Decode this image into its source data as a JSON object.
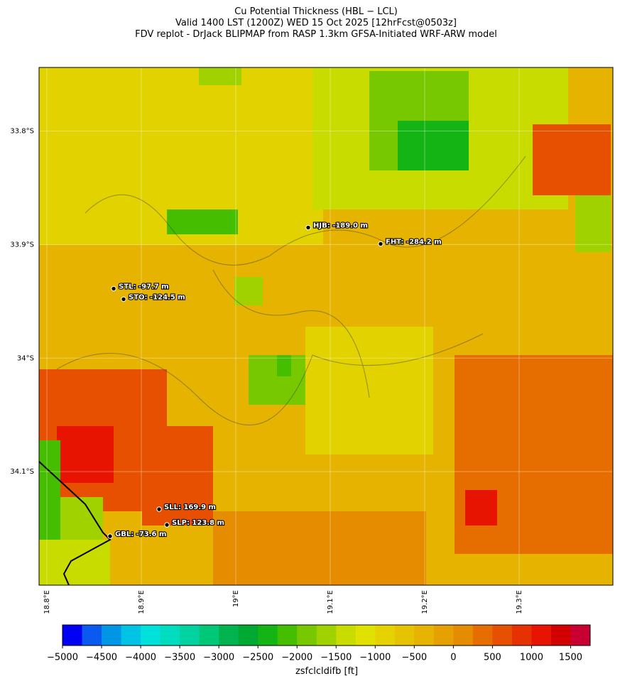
{
  "header": {
    "title_lines": [
      "Cu Potential Thickness (HBL − LCL)",
      "Valid 1400 LST (1200Z) WED 15 Oct 2025 [12hrFcst@0503z]",
      "FDV replot - DrJack BLIPMAP from RASP 1.3km GFSA-Initiated WRF-ARW model"
    ]
  },
  "map": {
    "lonlim": [
      18.7917,
      19.3993
    ],
    "latlim": [
      -34.2,
      -33.744
    ],
    "lon_ticks": [
      {
        "value": 18.8,
        "label": "18.8°E"
      },
      {
        "value": 18.9,
        "label": "18.9°E"
      },
      {
        "value": 19.0,
        "label": "19°E"
      },
      {
        "value": 19.1,
        "label": "19.1°E"
      },
      {
        "value": 19.2,
        "label": "19.2°E"
      },
      {
        "value": 19.3,
        "label": "19.3°E"
      }
    ],
    "lat_ticks": [
      {
        "value": -33.8,
        "label": "33.8°S"
      },
      {
        "value": -33.9,
        "label": "33.9°S"
      },
      {
        "value": -34.0,
        "label": "34°S"
      },
      {
        "value": -34.1,
        "label": "34.1°S"
      }
    ],
    "stations": [
      {
        "value": -189.0,
        "label": "HJB: -189.0 m",
        "lon": 19.0767,
        "lat": -33.885
      },
      {
        "value": -284.2,
        "label": "FHT: -284.2 m",
        "lon": 19.1534,
        "lat": -33.8994
      },
      {
        "value": -97.7,
        "label": "STL: -97.7 m",
        "lon": 18.8707,
        "lat": -33.9388
      },
      {
        "value": -124.5,
        "label": "STO: -124.5 m",
        "lon": 18.8812,
        "lat": -33.9481
      },
      {
        "value": 169.9,
        "label": "SLL: 169.9 m",
        "lon": 18.9188,
        "lat": -34.1331
      },
      {
        "value": 123.8,
        "label": "SLP: 123.8 m",
        "lon": 18.9271,
        "lat": -34.1469
      },
      {
        "value": -73.6,
        "label": "GBL: -73.6 m",
        "lon": 18.8669,
        "lat": -34.1569
      }
    ]
  },
  "colorbar": {
    "label": "zsfclcldifb [ft]",
    "lim": [
      -5000,
      1750
    ],
    "colors": [
      "#0000f5",
      "#0a5af0",
      "#0096e6",
      "#00c3e6",
      "#00e1dc",
      "#00dcbe",
      "#00d2a0",
      "#00c878",
      "#00b450",
      "#00aa32",
      "#14b414",
      "#46be00",
      "#78c800",
      "#a0d200",
      "#c8dc00",
      "#e1e100",
      "#e6d200",
      "#e6c300",
      "#e6b400",
      "#e6a000",
      "#e68c00",
      "#e66e00",
      "#e65000",
      "#e63200",
      "#e61400",
      "#d20000",
      "#c80032"
    ],
    "ticks": [
      {
        "value": -5000,
        "label": "−5000"
      },
      {
        "value": -4500,
        "label": "−4500"
      },
      {
        "value": -4000,
        "label": "−4000"
      },
      {
        "value": -3500,
        "label": "−3500"
      },
      {
        "value": -3000,
        "label": "−3000"
      },
      {
        "value": -2500,
        "label": "−2500"
      },
      {
        "value": -2000,
        "label": "−2000"
      },
      {
        "value": -1500,
        "label": "−1500"
      },
      {
        "value": -1000,
        "label": "−1000"
      },
      {
        "value": -500,
        "label": "−500"
      },
      0,
      500,
      1000,
      1500
    ]
  }
}
